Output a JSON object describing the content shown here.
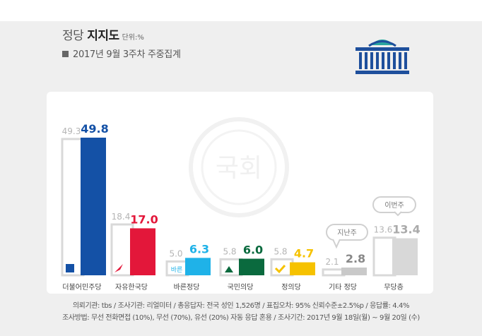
{
  "header": {
    "title_light": "정당 ",
    "title_bold": "지지도",
    "unit": "단위:%",
    "subtitle": "2017년 9월 3주차 주중집계"
  },
  "logo": {
    "name": "national-assembly-logo",
    "color": "#1e4f9c",
    "accent": "#2aa6a0"
  },
  "watermark": {
    "text": "국회"
  },
  "chart_data": {
    "type": "bar",
    "categories": [
      "더불어민주당",
      "자유한국당",
      "바른정당",
      "국민의당",
      "정의당",
      "기타 정당",
      "무당층"
    ],
    "series": [
      {
        "name": "지난주",
        "values": [
          49.3,
          18.4,
          5.0,
          5.8,
          5.8,
          2.1,
          13.6
        ],
        "color": "#ffffff",
        "stroke": "#d9d9d9"
      },
      {
        "name": "이번주",
        "values": [
          49.8,
          17.0,
          6.3,
          6.0,
          4.7,
          2.8,
          13.4
        ],
        "colors": [
          "#1451a6",
          "#e3173a",
          "#1fb2e8",
          "#0a6a3e",
          "#f6c200",
          "#c9c9c9",
          "#d8d8d8"
        ]
      }
    ],
    "value_label_colors": [
      "#1451a6",
      "#e3173a",
      "#1fb2e8",
      "#0a6a3e",
      "#f6c200",
      "#888888",
      "#aaaaaa"
    ],
    "party_icons": [
      "democratic-party-icon",
      "liberty-korea-party-icon",
      "bareun-party-icon",
      "peoples-party-icon",
      "justice-party-icon",
      "",
      ""
    ],
    "party_icon_texts": [
      "",
      "",
      "바른",
      "",
      "",
      "",
      ""
    ],
    "callouts": {
      "last_week": "지난주",
      "this_week": "이번주"
    },
    "ylim": [
      0,
      55
    ],
    "grid": false,
    "legend": "callouts"
  },
  "footnotes": {
    "line1": "의뢰기관: tbs / 조사기관: 리얼미터 / 총응답자: 전국 성인 1,526명 / 표집오차: 95% 신뢰수준±2.5%p / 응답률: 4.4%",
    "line2": "조사방법: 무선 전화면접 (10%), 무선 (70%), 유선 (20%) 자동 응답 혼용 / 조사기간: 2017년 9월 18일(월) ~ 9월 20일 (수)"
  }
}
